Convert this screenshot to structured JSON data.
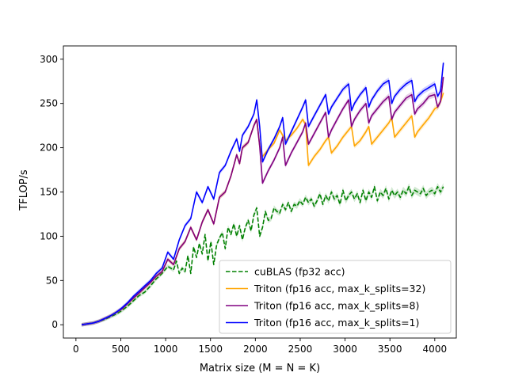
{
  "chart_data": {
    "type": "line",
    "title": "",
    "xlabel": "Matrix size (M = N = K)",
    "ylabel": "TFLOP/s",
    "xlim": [
      -140,
      4240
    ],
    "ylim": [
      -15,
      315
    ],
    "xticks": [
      0,
      500,
      1000,
      1500,
      2000,
      2500,
      3000,
      3500,
      4000
    ],
    "yticks": [
      0,
      50,
      100,
      150,
      200,
      250,
      300
    ],
    "grid": false,
    "legend_position": "lower-right",
    "series": [
      {
        "name": "cuBLAS (fp32 acc)",
        "color": "#008000",
        "dash": "dashed",
        "x": [
          64,
          128,
          192,
          256,
          320,
          384,
          448,
          512,
          576,
          640,
          704,
          768,
          832,
          896,
          960,
          1024,
          1088,
          1120,
          1152,
          1184,
          1216,
          1248,
          1280,
          1312,
          1344,
          1376,
          1408,
          1440,
          1472,
          1504,
          1536,
          1568,
          1600,
          1632,
          1664,
          1696,
          1728,
          1760,
          1792,
          1824,
          1856,
          1888,
          1920,
          1952,
          1984,
          2016,
          2048,
          2080,
          2112,
          2144,
          2176,
          2208,
          2240,
          2272,
          2304,
          2336,
          2368,
          2400,
          2432,
          2464,
          2496,
          2528,
          2560,
          2592,
          2624,
          2656,
          2688,
          2720,
          2752,
          2784,
          2816,
          2848,
          2880,
          2912,
          2944,
          2976,
          3008,
          3040,
          3072,
          3104,
          3136,
          3168,
          3200,
          3232,
          3264,
          3296,
          3328,
          3360,
          3392,
          3424,
          3456,
          3488,
          3520,
          3552,
          3584,
          3616,
          3648,
          3680,
          3712,
          3744,
          3776,
          3808,
          3840,
          3872,
          3904,
          3936,
          3968,
          4000,
          4032,
          4064,
          4096
        ],
        "values": [
          0,
          1,
          2,
          4,
          6,
          9,
          12,
          16,
          21,
          27,
          33,
          37,
          44,
          52,
          58,
          66,
          62,
          72,
          58,
          64,
          60,
          78,
          58,
          88,
          76,
          92,
          80,
          102,
          72,
          94,
          68,
          90,
          98,
          104,
          86,
          110,
          102,
          114,
          100,
          112,
          96,
          110,
          118,
          106,
          124,
          132,
          100,
          110,
          128,
          118,
          120,
          132,
          128,
          126,
          136,
          130,
          138,
          128,
          136,
          134,
          140,
          136,
          144,
          138,
          142,
          134,
          140,
          148,
          136,
          146,
          140,
          150,
          142,
          146,
          136,
          152,
          140,
          146,
          150,
          142,
          148,
          138,
          152,
          140,
          150,
          144,
          156,
          140,
          150,
          146,
          154,
          142,
          152,
          146,
          150,
          144,
          152,
          148,
          156,
          146,
          152,
          150,
          148,
          154,
          146,
          150,
          152,
          148,
          156,
          150,
          156
        ]
      },
      {
        "name": "Triton (fp16 acc, max_k_splits=32)",
        "color": "#ffa500",
        "dash": "solid",
        "x": [
          64,
          128,
          192,
          256,
          320,
          384,
          448,
          512,
          576,
          640,
          704,
          768,
          832,
          896,
          960,
          1024,
          1088,
          1152,
          1216,
          1280,
          1344,
          1408,
          1472,
          1536,
          1600,
          1664,
          1728,
          1792,
          1824,
          1856,
          1920,
          1984,
          2016,
          2048,
          2080,
          2144,
          2208,
          2272,
          2304,
          2336,
          2400,
          2464,
          2528,
          2560,
          2592,
          2656,
          2720,
          2784,
          2816,
          2848,
          2912,
          2976,
          3040,
          3072,
          3104,
          3168,
          3232,
          3264,
          3296,
          3360,
          3424,
          3488,
          3520,
          3552,
          3616,
          3680,
          3744,
          3776,
          3808,
          3872,
          3936,
          4000,
          4032,
          4064,
          4096
        ],
        "values": [
          0,
          1,
          2,
          4,
          7,
          10,
          14,
          18,
          24,
          30,
          36,
          42,
          48,
          55,
          60,
          74,
          68,
          86,
          94,
          110,
          96,
          116,
          130,
          114,
          144,
          150,
          168,
          192,
          182,
          200,
          206,
          225,
          232,
          202,
          190,
          198,
          205,
          220,
          214,
          208,
          214,
          222,
          232,
          226,
          180,
          190,
          198,
          208,
          212,
          194,
          202,
          212,
          220,
          224,
          202,
          208,
          218,
          224,
          204,
          212,
          220,
          228,
          234,
          212,
          220,
          228,
          236,
          212,
          218,
          226,
          234,
          244,
          246,
          252,
          262
        ]
      },
      {
        "name": "Triton (fp16 acc, max_k_splits=8)",
        "color": "#800080",
        "dash": "solid",
        "x": [
          64,
          128,
          192,
          256,
          320,
          384,
          448,
          512,
          576,
          640,
          704,
          768,
          832,
          896,
          960,
          1024,
          1088,
          1152,
          1216,
          1280,
          1344,
          1408,
          1472,
          1536,
          1600,
          1664,
          1728,
          1792,
          1824,
          1856,
          1920,
          1984,
          2016,
          2048,
          2080,
          2144,
          2208,
          2272,
          2304,
          2336,
          2400,
          2464,
          2528,
          2560,
          2592,
          2656,
          2720,
          2784,
          2816,
          2848,
          2912,
          2976,
          3040,
          3072,
          3104,
          3168,
          3232,
          3264,
          3296,
          3360,
          3424,
          3488,
          3520,
          3552,
          3616,
          3680,
          3744,
          3776,
          3808,
          3872,
          3936,
          4000,
          4032,
          4064,
          4096
        ],
        "values": [
          0,
          1,
          2,
          4,
          7,
          10,
          14,
          18,
          24,
          30,
          36,
          42,
          48,
          55,
          60,
          74,
          68,
          86,
          94,
          110,
          96,
          116,
          130,
          114,
          144,
          150,
          168,
          192,
          182,
          200,
          206,
          225,
          232,
          202,
          160,
          174,
          186,
          200,
          212,
          180,
          194,
          206,
          218,
          228,
          204,
          216,
          228,
          240,
          212,
          220,
          232,
          244,
          254,
          224,
          232,
          242,
          250,
          228,
          236,
          244,
          252,
          258,
          232,
          240,
          248,
          256,
          260,
          238,
          244,
          250,
          258,
          260,
          246,
          252,
          280
        ]
      },
      {
        "name": "Triton (fp16 acc, max_k_splits=1)",
        "color": "#0000ff",
        "dash": "solid",
        "x": [
          64,
          128,
          192,
          256,
          320,
          384,
          448,
          512,
          576,
          640,
          704,
          768,
          832,
          896,
          960,
          1024,
          1088,
          1152,
          1216,
          1280,
          1344,
          1408,
          1472,
          1536,
          1600,
          1664,
          1728,
          1792,
          1824,
          1856,
          1920,
          1984,
          2016,
          2048,
          2080,
          2144,
          2208,
          2272,
          2304,
          2336,
          2400,
          2464,
          2528,
          2560,
          2592,
          2656,
          2720,
          2784,
          2816,
          2848,
          2912,
          2976,
          3040,
          3072,
          3104,
          3168,
          3232,
          3264,
          3296,
          3360,
          3424,
          3488,
          3520,
          3552,
          3616,
          3680,
          3744,
          3776,
          3808,
          3872,
          3936,
          4000,
          4032,
          4064,
          4096
        ],
        "values": [
          0,
          1,
          2,
          4,
          7,
          10,
          14,
          19,
          25,
          32,
          38,
          44,
          50,
          58,
          64,
          82,
          74,
          96,
          112,
          120,
          150,
          138,
          156,
          142,
          172,
          180,
          196,
          210,
          196,
          214,
          224,
          238,
          254,
          224,
          184,
          198,
          210,
          224,
          234,
          204,
          218,
          232,
          246,
          254,
          224,
          236,
          248,
          260,
          238,
          246,
          256,
          266,
          272,
          242,
          250,
          260,
          268,
          246,
          254,
          264,
          272,
          276,
          250,
          258,
          266,
          272,
          276,
          252,
          258,
          264,
          268,
          272,
          258,
          264,
          296
        ]
      }
    ]
  }
}
